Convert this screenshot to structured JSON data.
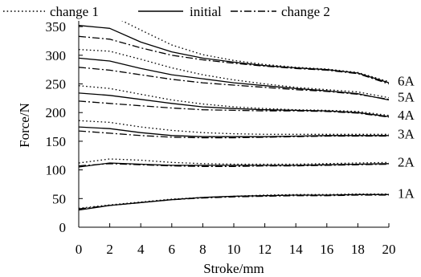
{
  "chart_data": {
    "type": "line",
    "xlabel": "Stroke/mm",
    "ylabel": "Force/N",
    "xlim": [
      0,
      20
    ],
    "ylim": [
      0,
      360
    ],
    "x_ticks": [
      "0",
      "2",
      "4",
      "6",
      "8",
      "10",
      "12",
      "14",
      "16",
      "18",
      "20"
    ],
    "y_ticks": [
      "0",
      "50",
      "100",
      "150",
      "200",
      "250",
      "300",
      "350"
    ],
    "legend": {
      "placement": "top",
      "entries": [
        "change 1",
        "initial",
        "change 2"
      ]
    },
    "grid": false,
    "current_labels": [
      "1A",
      "2A",
      "3A",
      "4A",
      "5A",
      "6A"
    ],
    "x": [
      0,
      2,
      4,
      6,
      8,
      10,
      12,
      14,
      16,
      18,
      20
    ],
    "series": [
      {
        "name": "initial",
        "current": "1A",
        "style": "solid",
        "values": [
          30,
          38,
          43,
          48,
          52,
          54,
          55,
          56,
          56,
          57,
          57
        ]
      },
      {
        "name": "change 1",
        "current": "1A",
        "style": "dotted",
        "values": [
          33,
          39,
          44,
          49,
          52,
          54,
          56,
          57,
          57,
          58,
          58
        ]
      },
      {
        "name": "change 2",
        "current": "1A",
        "style": "dashdot",
        "values": [
          32,
          38,
          43,
          48,
          51,
          53,
          54,
          55,
          55,
          56,
          56
        ]
      },
      {
        "name": "initial",
        "current": "2A",
        "style": "solid",
        "values": [
          105,
          112,
          110,
          108,
          108,
          108,
          108,
          108,
          109,
          110,
          111
        ]
      },
      {
        "name": "change 1",
        "current": "2A",
        "style": "dotted",
        "values": [
          112,
          119,
          117,
          113,
          111,
          110,
          110,
          110,
          111,
          112,
          113
        ]
      },
      {
        "name": "change 2",
        "current": "2A",
        "style": "dashdot",
        "values": [
          107,
          111,
          109,
          107,
          106,
          106,
          107,
          107,
          108,
          109,
          110
        ]
      },
      {
        "name": "initial",
        "current": "3A",
        "style": "solid",
        "values": [
          175,
          172,
          165,
          160,
          158,
          158,
          158,
          159,
          160,
          160,
          160
        ]
      },
      {
        "name": "change 1",
        "current": "3A",
        "style": "dotted",
        "values": [
          186,
          183,
          175,
          169,
          165,
          163,
          162,
          162,
          162,
          162,
          162
        ]
      },
      {
        "name": "change 2",
        "current": "3A",
        "style": "dashdot",
        "values": [
          168,
          164,
          160,
          157,
          156,
          156,
          157,
          158,
          159,
          159,
          159
        ]
      },
      {
        "name": "initial",
        "current": "4A",
        "style": "solid",
        "values": [
          234,
          230,
          223,
          216,
          210,
          207,
          205,
          204,
          203,
          200,
          193
        ]
      },
      {
        "name": "change 1",
        "current": "4A",
        "style": "dotted",
        "values": [
          247,
          242,
          232,
          222,
          215,
          210,
          207,
          205,
          204,
          202,
          195
        ]
      },
      {
        "name": "change 2",
        "current": "4A",
        "style": "dashdot",
        "values": [
          220,
          216,
          212,
          208,
          205,
          204,
          203,
          203,
          202,
          199,
          192
        ]
      },
      {
        "name": "initial",
        "current": "5A",
        "style": "solid",
        "values": [
          295,
          290,
          277,
          266,
          259,
          252,
          247,
          242,
          238,
          233,
          222
        ]
      },
      {
        "name": "change 1",
        "current": "5A",
        "style": "dotted",
        "values": [
          310,
          307,
          293,
          278,
          266,
          257,
          250,
          244,
          240,
          236,
          226
        ]
      },
      {
        "name": "change 2",
        "current": "5A",
        "style": "dashdot",
        "values": [
          279,
          274,
          266,
          258,
          252,
          248,
          244,
          240,
          237,
          232,
          223
        ]
      },
      {
        "name": "initial",
        "current": "6A",
        "style": "solid",
        "values": [
          352,
          347,
          323,
          306,
          295,
          288,
          282,
          278,
          275,
          269,
          252
        ]
      },
      {
        "name": "change 1",
        "current": "6A",
        "style": "dotted",
        "values": [
          375,
          371,
          344,
          318,
          301,
          291,
          284,
          279,
          276,
          270,
          254
        ]
      },
      {
        "name": "change 2",
        "current": "6A",
        "style": "dashdot",
        "values": [
          333,
          328,
          313,
          300,
          292,
          286,
          281,
          277,
          274,
          268,
          250
        ]
      }
    ]
  }
}
